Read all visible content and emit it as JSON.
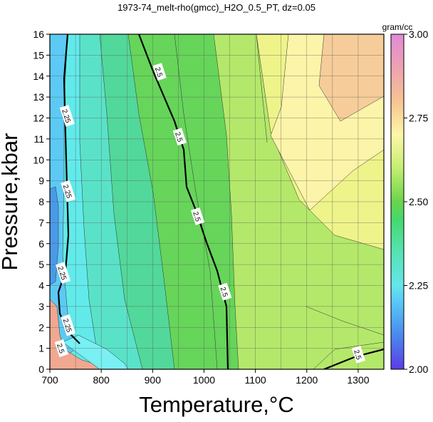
{
  "chart_data": {
    "type": "heatmap",
    "title": "1973-74_melt-rho(gmcc)_H2O_0.5_PT, dz=0.05",
    "xlabel": "Temperature,°C",
    "ylabel": "Pressure,kbar",
    "xlim": [
      700,
      1350
    ],
    "ylim": [
      0,
      16
    ],
    "x_ticks": [
      "700",
      "800",
      "900",
      "1000",
      "1100",
      "1200",
      "1300"
    ],
    "y_ticks": [
      "0",
      "1",
      "2",
      "3",
      "4",
      "5",
      "6",
      "7",
      "8",
      "9",
      "10",
      "11",
      "12",
      "13",
      "14",
      "15",
      "16"
    ],
    "grid": true,
    "colorbar": {
      "label": "gram/cc",
      "range": [
        2.0,
        3.0
      ],
      "ticks": [
        "2.00",
        "2.25",
        "2.50",
        "2.75",
        "3.00"
      ],
      "colors": [
        {
          "value": 2.0,
          "color": "#5a3ce8"
        },
        {
          "value": 2.1,
          "color": "#4a88ef"
        },
        {
          "value": 2.2,
          "color": "#58c8f6"
        },
        {
          "value": 2.25,
          "color": "#64e6ea"
        },
        {
          "value": 2.35,
          "color": "#56e2b4"
        },
        {
          "value": 2.45,
          "color": "#46d86c"
        },
        {
          "value": 2.5,
          "color": "#6ad44c"
        },
        {
          "value": 2.6,
          "color": "#c4ee70"
        },
        {
          "value": 2.7,
          "color": "#fdf6a8"
        },
        {
          "value": 2.8,
          "color": "#f6c492"
        },
        {
          "value": 2.9,
          "color": "#eda2b0"
        },
        {
          "value": 3.0,
          "color": "#e08ad8"
        }
      ]
    },
    "contour_interval": 0.05,
    "contour_labels": [
      {
        "label": "2.5",
        "x": 913,
        "y": 14.2
      },
      {
        "label": "2.5",
        "x": 952,
        "y": 11.1
      },
      {
        "label": "2.5",
        "x": 987,
        "y": 7.3
      },
      {
        "label": "2.5",
        "x": 1040,
        "y": 3.7
      },
      {
        "label": "2.5",
        "x": 1300,
        "y": 0.7
      },
      {
        "label": "2.5",
        "x": 722,
        "y": 1.0
      },
      {
        "label": "2.25",
        "x": 733,
        "y": 12.1
      },
      {
        "label": "2.25",
        "x": 735,
        "y": 8.5
      },
      {
        "label": "2.25",
        "x": 725,
        "y": 4.6
      },
      {
        "label": "2.25",
        "x": 735,
        "y": 2.1
      }
    ]
  }
}
